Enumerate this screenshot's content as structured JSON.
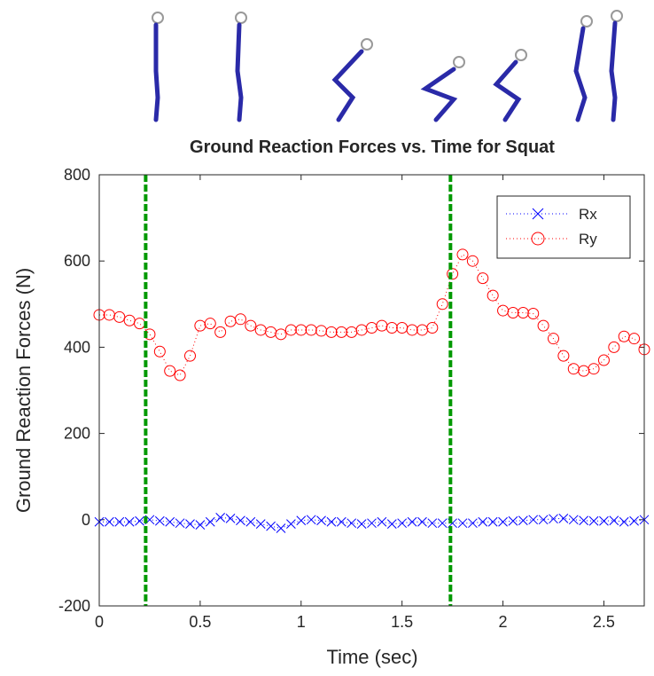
{
  "chart_data": {
    "type": "line",
    "title": "Ground Reaction Forces vs. Time for Squat",
    "x_label": "Time (sec)",
    "y_label": "Ground Reaction Forces (N)",
    "x": [
      0,
      0.05,
      0.1,
      0.15,
      0.2,
      0.25,
      0.3,
      0.35,
      0.4,
      0.45,
      0.5,
      0.55,
      0.6,
      0.65,
      0.7,
      0.75,
      0.8,
      0.85,
      0.9,
      0.95,
      1,
      1.05,
      1.1,
      1.15,
      1.2,
      1.25,
      1.3,
      1.35,
      1.4,
      1.45,
      1.5,
      1.55,
      1.6,
      1.65,
      1.7,
      1.75,
      1.8,
      1.85,
      1.9,
      1.95,
      2,
      2.05,
      2.1,
      2.15,
      2.2,
      2.25,
      2.3,
      2.35,
      2.4,
      2.45,
      2.5,
      2.55,
      2.6,
      2.65,
      2.7
    ],
    "series": [
      {
        "name": "Rx",
        "color": "#0000ff",
        "marker": "x",
        "values": [
          -5,
          -5,
          -5,
          -5,
          -3,
          0,
          -3,
          -5,
          -8,
          -10,
          -12,
          -5,
          5,
          3,
          -2,
          -5,
          -10,
          -15,
          -20,
          -10,
          -2,
          0,
          -2,
          -5,
          -5,
          -8,
          -10,
          -8,
          -5,
          -10,
          -8,
          -5,
          -5,
          -8,
          -8,
          -8,
          -8,
          -8,
          -5,
          -5,
          -5,
          -3,
          -2,
          0,
          0,
          2,
          3,
          0,
          -2,
          -3,
          -3,
          -2,
          -5,
          -3,
          0
        ]
      },
      {
        "name": "Ry",
        "color": "#ff0000",
        "marker": "o",
        "values": [
          475,
          475,
          470,
          462,
          455,
          430,
          390,
          345,
          335,
          380,
          450,
          455,
          435,
          460,
          465,
          450,
          440,
          435,
          430,
          440,
          440,
          440,
          438,
          435,
          435,
          435,
          440,
          445,
          450,
          445,
          445,
          440,
          440,
          445,
          500,
          570,
          615,
          600,
          560,
          520,
          485,
          480,
          480,
          478,
          450,
          420,
          380,
          350,
          345,
          350,
          370,
          400,
          425,
          420,
          395
        ]
      }
    ],
    "vlines": [
      0.23,
      1.74
    ],
    "vline_color": "#009900",
    "xlim": [
      0,
      2.7
    ],
    "xticks": [
      0,
      0.5,
      1,
      1.5,
      2,
      2.5
    ],
    "ylim": [
      -200,
      800
    ],
    "yticks": [
      -200,
      0,
      200,
      400,
      600,
      800
    ],
    "grid": false,
    "legend": "top-right"
  }
}
